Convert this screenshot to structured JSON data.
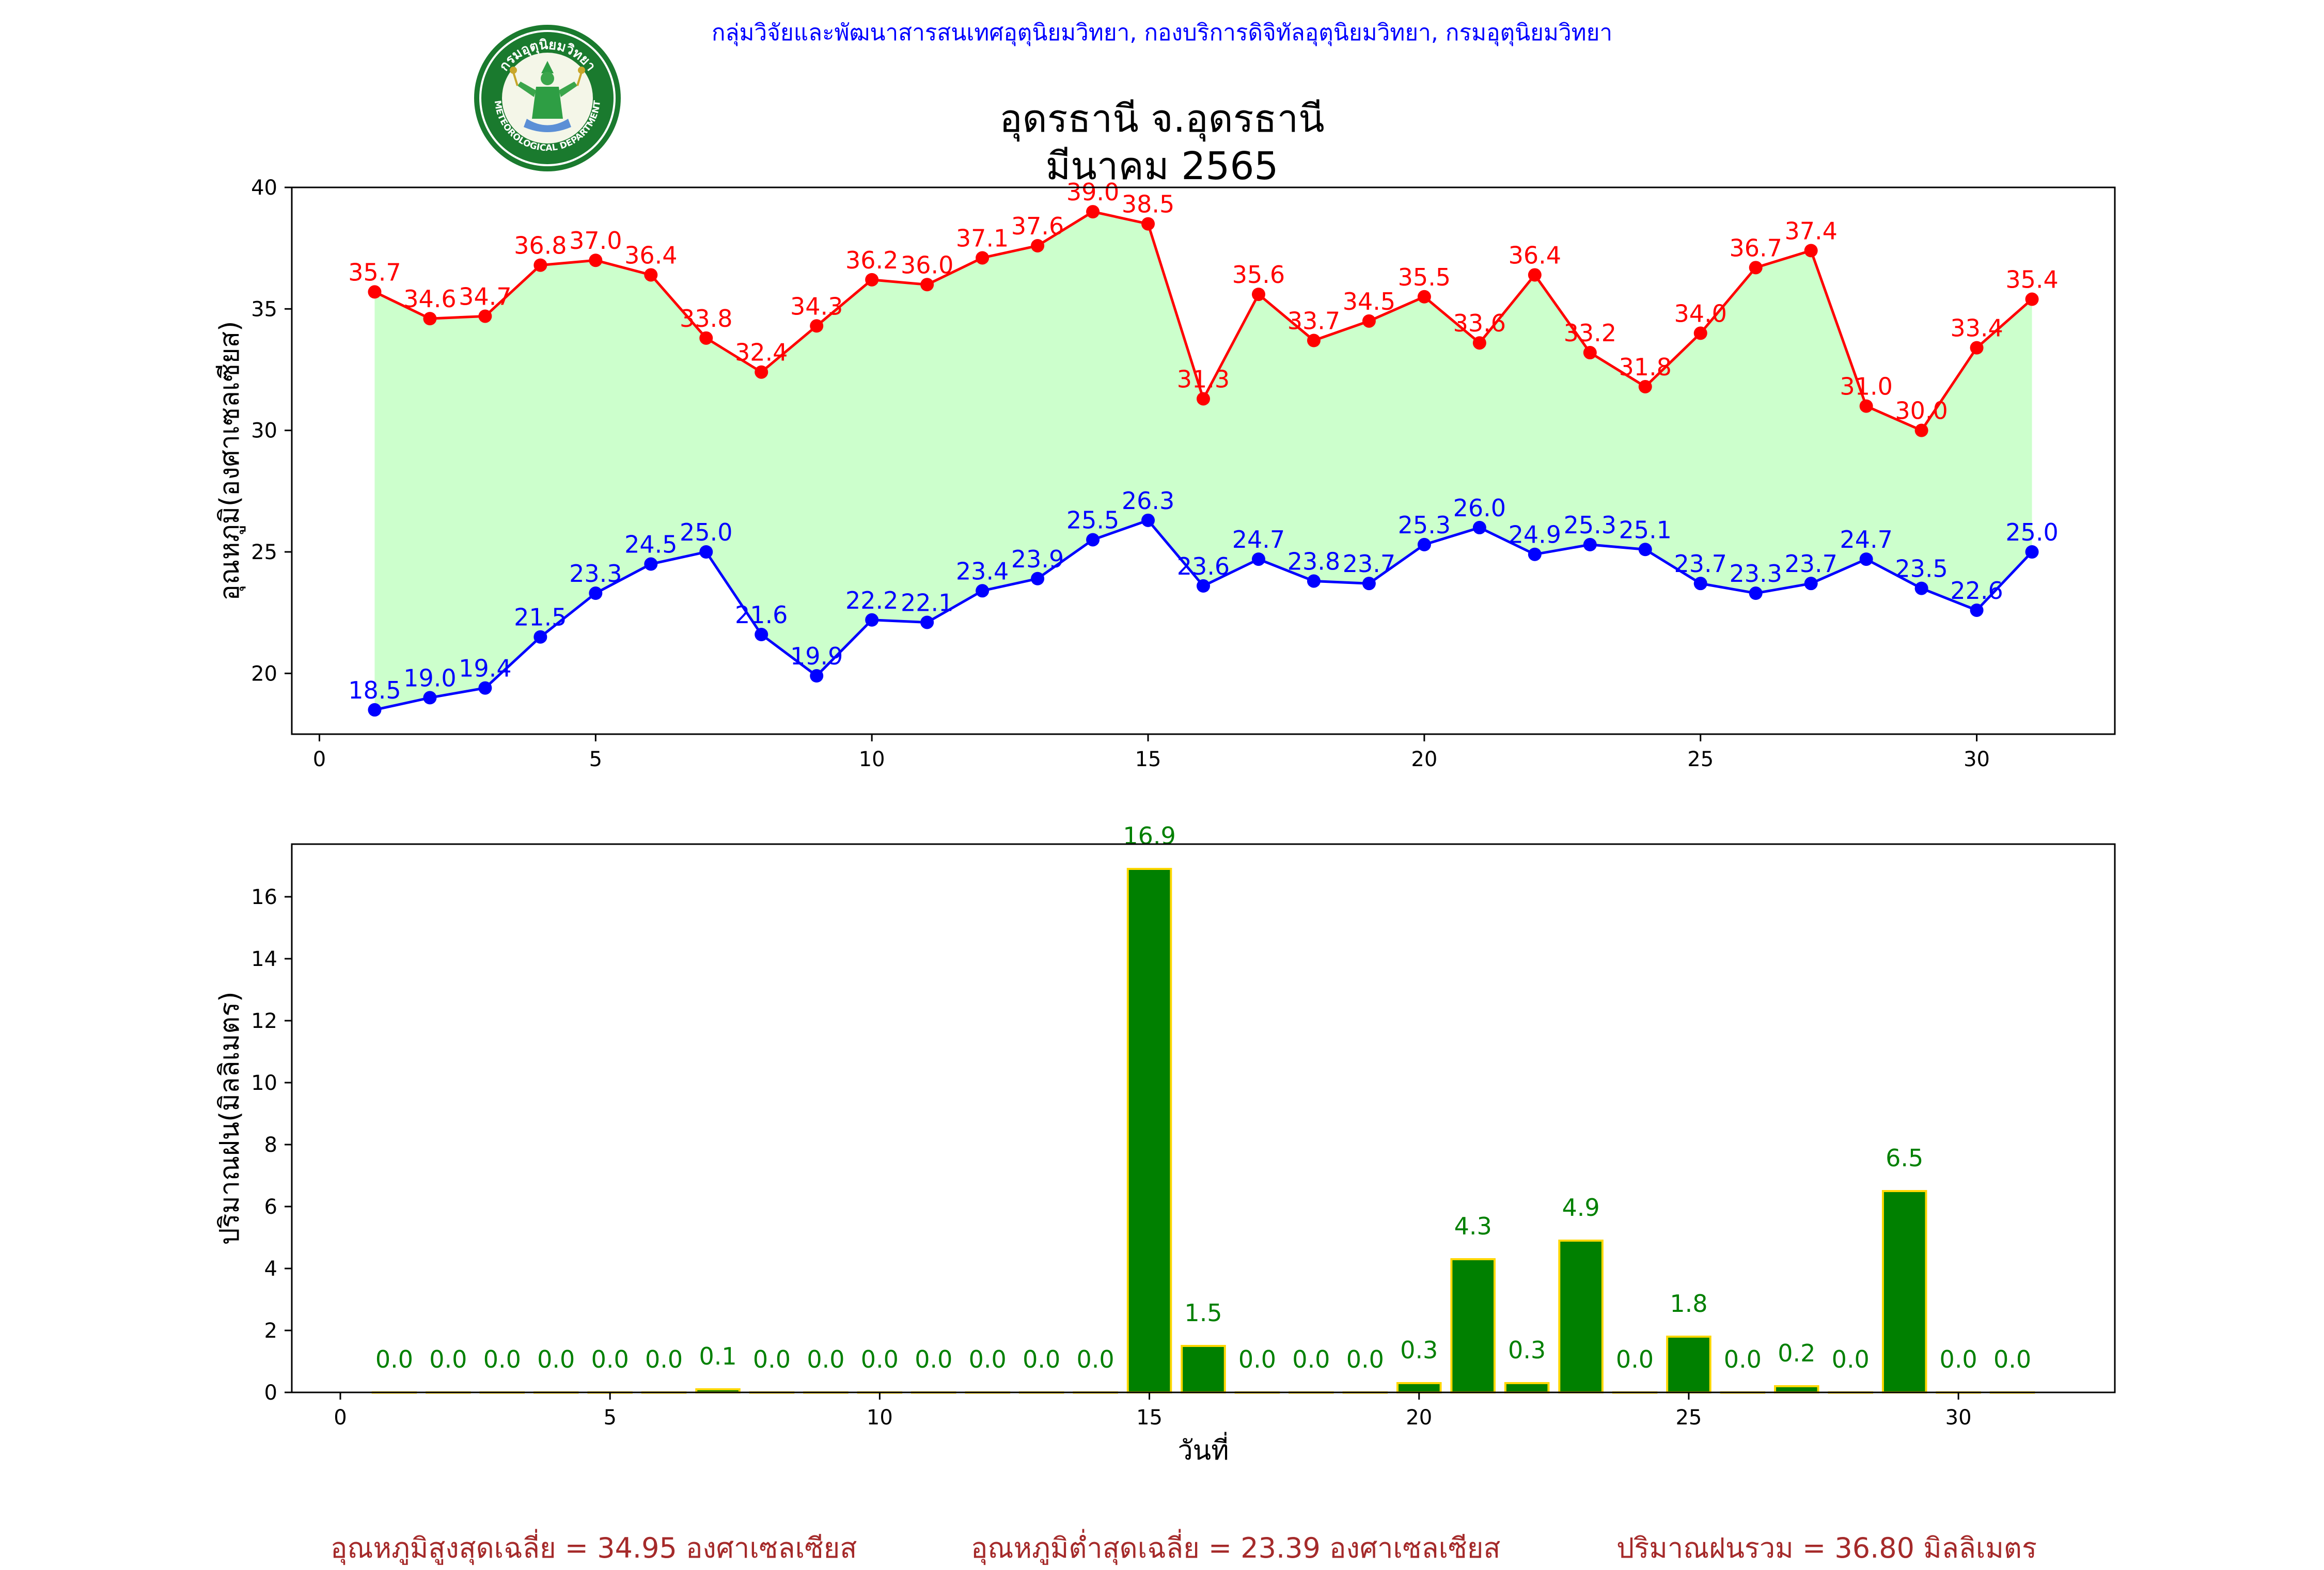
{
  "header": {
    "department_line": "กลุ่มวิจัยและพัฒนาสารสนเทศอุตุนิยมวิทยา, กองบริการดิจิทัลอุตุนิยมวิทยา, กรมอุตุนิยมวิทยา",
    "logo_text_top": "กรมอุตุนิยมวิทยา",
    "logo_text_bottom": "METEOROLOGICAL DEPARTMENT"
  },
  "title": {
    "line1": "อุดรธานี จ.อุดรธานี",
    "line2": "มีนาคม 2565"
  },
  "footer": {
    "avg_max": "อุณหภูมิสูงสุดเฉลี่ย = 34.95 องศาเซลเซียส",
    "avg_min": "อุณหภูมิต่ำสุดเฉลี่ย = 23.39 องศาเซลเซียส",
    "total_rain": "ปริมาณฝนรวม = 36.80 มิลลิเมตร"
  },
  "colors": {
    "max_line": "#ff0000",
    "min_line": "#0000ff",
    "fill": "#ccffcc",
    "bar_fill": "#008000",
    "bar_edge": "#ffd700",
    "bar_label": "#008000",
    "footer_text": "#a52a2a"
  },
  "chart_data": [
    {
      "type": "line",
      "x": [
        1,
        2,
        3,
        4,
        5,
        6,
        7,
        8,
        9,
        10,
        11,
        12,
        13,
        14,
        15,
        16,
        17,
        18,
        19,
        20,
        21,
        22,
        23,
        24,
        25,
        26,
        27,
        28,
        29,
        30,
        31
      ],
      "series": [
        {
          "values": [
            35.7,
            34.6,
            34.7,
            36.8,
            37.0,
            36.4,
            33.8,
            32.4,
            34.3,
            36.2,
            36.0,
            37.1,
            37.6,
            39.0,
            38.5,
            31.3,
            35.6,
            33.7,
            34.5,
            35.5,
            33.6,
            36.4,
            33.2,
            31.8,
            34.0,
            36.7,
            37.4,
            31.0,
            30.0,
            33.4,
            35.4
          ]
        },
        {
          "values": [
            18.5,
            19.0,
            19.4,
            21.5,
            23.3,
            24.5,
            25.0,
            21.6,
            19.9,
            22.2,
            22.1,
            23.4,
            23.9,
            25.5,
            26.3,
            23.6,
            24.7,
            23.8,
            23.7,
            25.3,
            26.0,
            24.9,
            25.3,
            25.1,
            23.7,
            23.3,
            23.7,
            24.7,
            23.5,
            22.6,
            25.0
          ]
        }
      ],
      "ylabel": "อุณหภูมิ(องศาเซลเซียส)",
      "xlim": [
        -0.5,
        32.5
      ],
      "ylim": [
        17.5,
        40
      ],
      "xticks": [
        0,
        5,
        10,
        15,
        20,
        25,
        30
      ],
      "yticks": [
        20,
        25,
        30,
        35,
        40
      ],
      "grid": false
    },
    {
      "type": "bar",
      "x": [
        1,
        2,
        3,
        4,
        5,
        6,
        7,
        8,
        9,
        10,
        11,
        12,
        13,
        14,
        15,
        16,
        17,
        18,
        19,
        20,
        21,
        22,
        23,
        24,
        25,
        26,
        27,
        28,
        29,
        30,
        31
      ],
      "values": [
        0.0,
        0.0,
        0.0,
        0.0,
        0.0,
        0.0,
        0.1,
        0.0,
        0.0,
        0.0,
        0.0,
        0.0,
        0.0,
        0.0,
        16.9,
        1.5,
        0.0,
        0.0,
        0.0,
        0.3,
        4.3,
        0.3,
        4.9,
        0.0,
        1.8,
        0.0,
        0.2,
        0.0,
        6.5,
        0.0,
        0.0
      ],
      "xlabel": "วันที่",
      "ylabel": "ปริมาณฝน(มิลลิเมตร)",
      "xlim": [
        -0.9,
        32.9
      ],
      "ylim": [
        0,
        17.7
      ],
      "xticks": [
        0,
        5,
        10,
        15,
        20,
        25,
        30
      ],
      "yticks": [
        0,
        2,
        4,
        6,
        8,
        10,
        12,
        14,
        16
      ],
      "grid": false
    }
  ]
}
